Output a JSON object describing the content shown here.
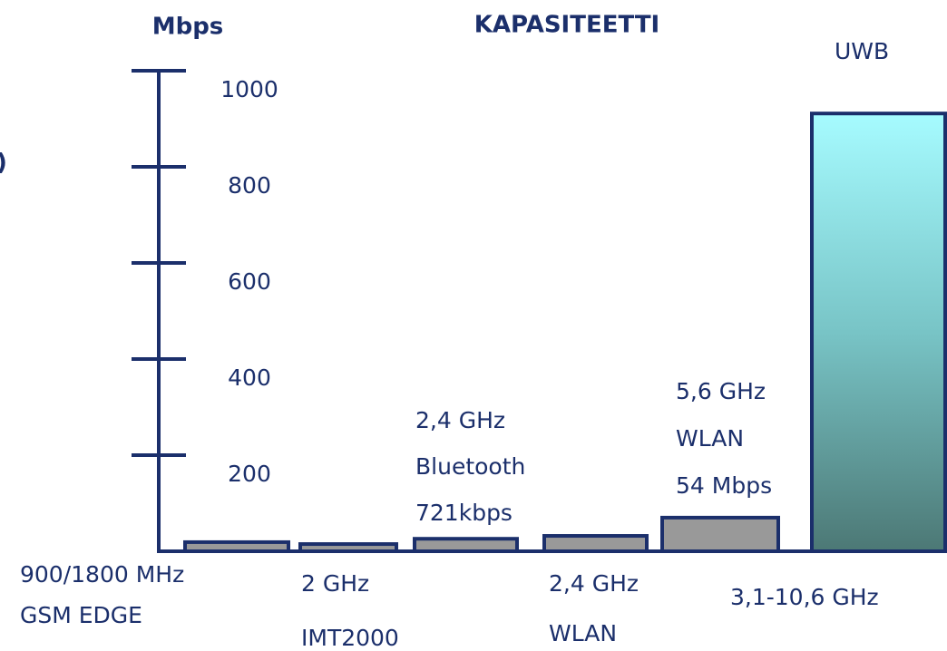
{
  "chart_data": {
    "type": "bar",
    "title": "KAPASITEETTI",
    "y_label": "Mbps",
    "edge_text": ")",
    "categories": [
      [
        "900/1800 MHz",
        "GSM EDGE"
      ],
      [
        "2 GHz",
        "IMT2000"
      ],
      [],
      [
        "2,4 GHz",
        "WLAN"
      ],
      [],
      [
        "3,1-10,6 GHz"
      ]
    ],
    "annotations": [
      [],
      [],
      [
        "2,4 GHz",
        "Bluetooth",
        "721kbps"
      ],
      [],
      [
        "5,6 GHz",
        "WLAN",
        "54 Mbps"
      ],
      [
        "UWB"
      ]
    ],
    "values": [
      19,
      15,
      26,
      32,
      70,
      911
    ],
    "colors": [
      "#999999",
      "#999999",
      "#999999",
      "#999999",
      "#999999",
      "gradient"
    ],
    "ylim": [
      0,
      1000
    ],
    "yticks": [
      200,
      400,
      600,
      800,
      1000
    ]
  }
}
